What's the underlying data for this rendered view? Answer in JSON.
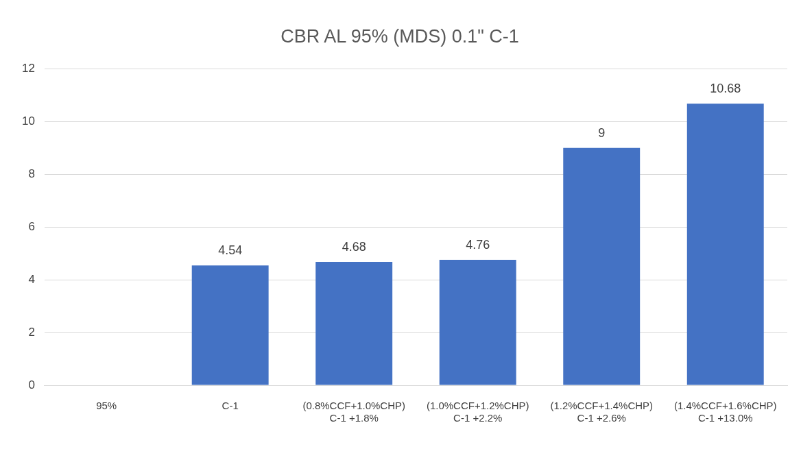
{
  "chart_data": {
    "type": "bar",
    "title": "CBR AL 95% (MDS) 0.1\" C-1",
    "categories": [
      "95%",
      "C-1",
      "(0.8%CCF+1.0%CHP)\nC-1 +1.8%",
      "(1.0%CCF+1.2%CHP)\nC-1 +2.2%",
      "(1.2%CCF+1.4%CHP)\nC-1 +2.6%",
      "(1.4%CCF+1.6%CHP)\nC-1 +13.0%"
    ],
    "values": [
      null,
      4.54,
      4.68,
      4.76,
      9,
      10.68
    ],
    "color": "#4472c4",
    "ylim": [
      0,
      12
    ],
    "yticks": [
      0,
      2,
      4,
      6,
      8,
      10,
      12
    ],
    "grid": "y",
    "legend": false,
    "data_labels": true
  }
}
